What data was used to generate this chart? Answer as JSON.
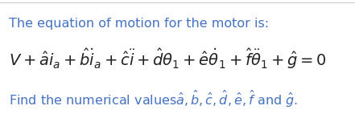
{
  "bg_color": "#ffffff",
  "border_color": "#cccccc",
  "line1_text": "The equation of motion for the motor is:",
  "line1_color": "#4472c4",
  "line1_fontsize": 11.5,
  "line2_latex": "$V + \\hat{a}i_a + \\hat{b}\\dot{i}_a + \\hat{c}\\ddot{i} + \\hat{d}\\theta_1 + \\hat{e}\\dot{\\theta}_1 + \\hat{f}\\ddot{\\theta}_1 + \\hat{g} = 0$",
  "line2_color": "#222222",
  "line2_fontsize": 14,
  "line3_latex": "$\\mathrm{Find\\ the\\ numerical\\ values}\\hat{a}, \\hat{b}, \\hat{c}, \\hat{d}, \\hat{e}, \\hat{f}\\ \\mathrm{and}\\ \\hat{g}.$",
  "line3_color": "#4472c4",
  "line3_fontsize": 11.5,
  "figsize": [
    4.41,
    1.47
  ],
  "dpi": 100
}
